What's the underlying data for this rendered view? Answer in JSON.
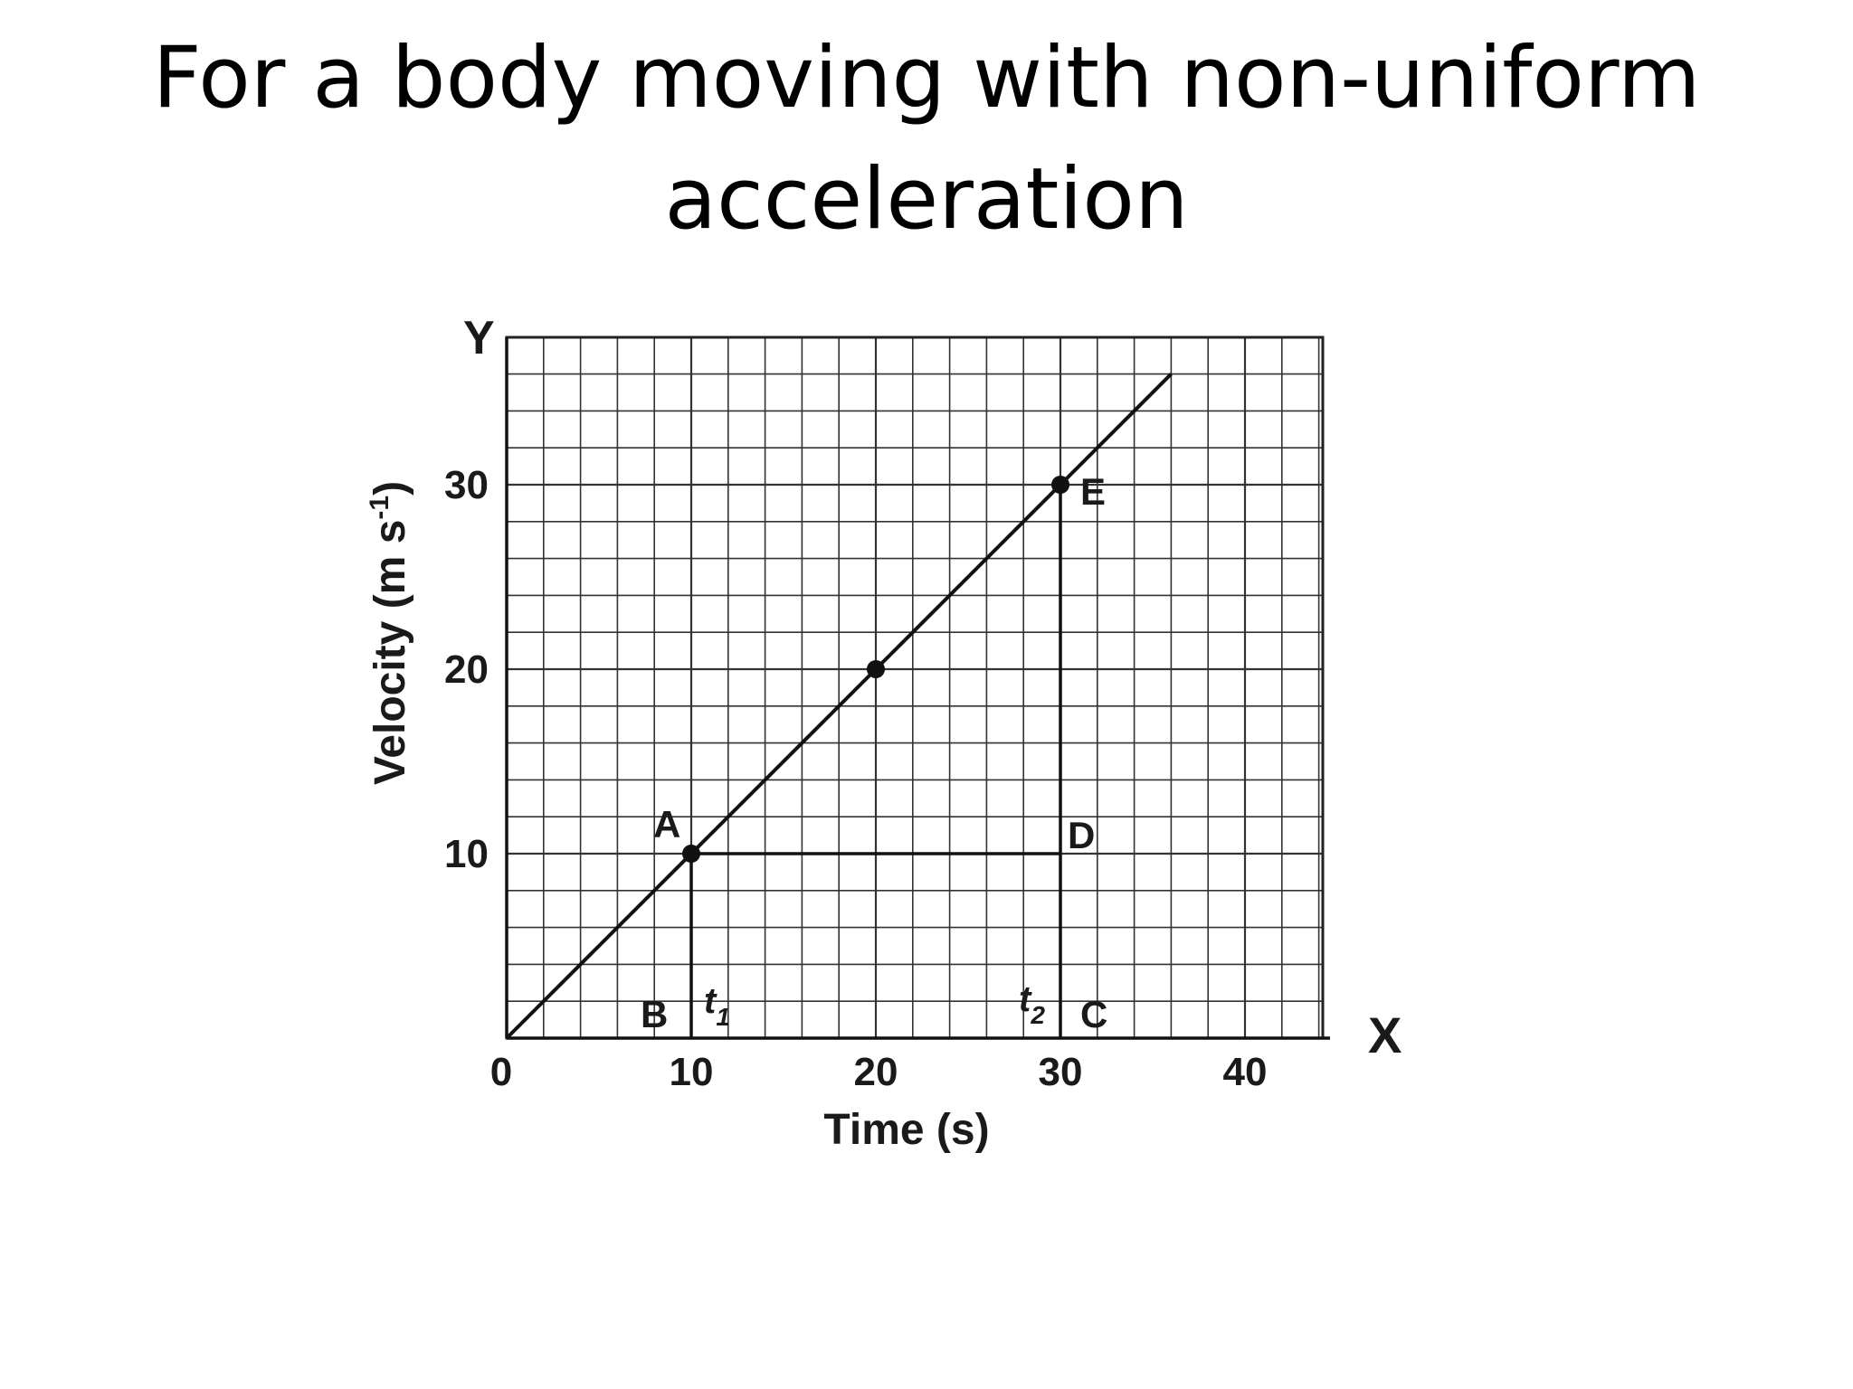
{
  "slide": {
    "title_line1": "For a body moving with non-uniform",
    "title_line2": "acceleration"
  },
  "chart_data": {
    "type": "line",
    "title": "",
    "xlabel": "Time (s)",
    "ylabel_main": "Velocity (m s",
    "ylabel_sup": "-1",
    "ylabel_close": ")",
    "x_axis_letter": "X",
    "y_axis_letter": "Y",
    "origin_label": "0",
    "xlim": [
      0,
      44
    ],
    "ylim": [
      0,
      38
    ],
    "xticks": [
      10,
      20,
      30,
      40
    ],
    "yticks": [
      10,
      20,
      30
    ],
    "grid": true,
    "series": [
      {
        "x": [
          0,
          36
        ],
        "y": [
          0,
          36
        ]
      }
    ],
    "points": [
      {
        "x": 10,
        "y": 10,
        "label": "A"
      },
      {
        "x": 20,
        "y": 20,
        "label": ""
      },
      {
        "x": 30,
        "y": 30,
        "label": "E"
      }
    ],
    "construction": {
      "B": "B",
      "C": "C",
      "D": "D",
      "t1": "t",
      "t1_sub": "1",
      "t2": "t",
      "t2_sub": "2"
    }
  }
}
